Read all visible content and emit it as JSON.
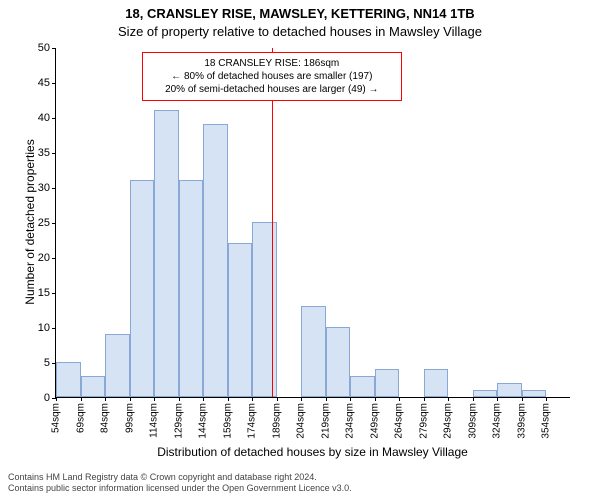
{
  "title_line1": "18, CRANSLEY RISE, MAWSLEY, KETTERING, NN14 1TB",
  "title_line2": "Size of property relative to detached houses in Mawsley Village",
  "chart": {
    "type": "histogram",
    "background_color": "#ffffff",
    "bar_fill": "#d5e3f4",
    "bar_border": "#8aa8d6",
    "axis_color": "#000000",
    "vline_color": "#ff0000",
    "annotation_border": "#ff0000",
    "tick_fontsize": 11,
    "label_fontsize": 12,
    "title_fontsize": 13,
    "ylim": [
      0,
      50
    ],
    "ytick_step": 5,
    "x_start": 54,
    "x_step": 15,
    "x_count": 21,
    "x_unit": "sqm",
    "bar_values": [
      5,
      3,
      9,
      31,
      41,
      31,
      39,
      22,
      25,
      0,
      13,
      10,
      3,
      4,
      0,
      4,
      0,
      1,
      2,
      1,
      0
    ],
    "vline_x": 186,
    "ylabel": "Number of detached properties",
    "xlabel": "Distribution of detached houses by size in Mawsley Village"
  },
  "annotation": {
    "line1": "18 CRANSLEY RISE: 186sqm",
    "line2": "← 80% of detached houses are smaller (197)",
    "line3": "20% of semi-detached houses are larger (49) →"
  },
  "footer": {
    "line1": "Contains HM Land Registry data © Crown copyright and database right 2024.",
    "line2": "Contains public sector information licensed under the Open Government Licence v3.0."
  }
}
